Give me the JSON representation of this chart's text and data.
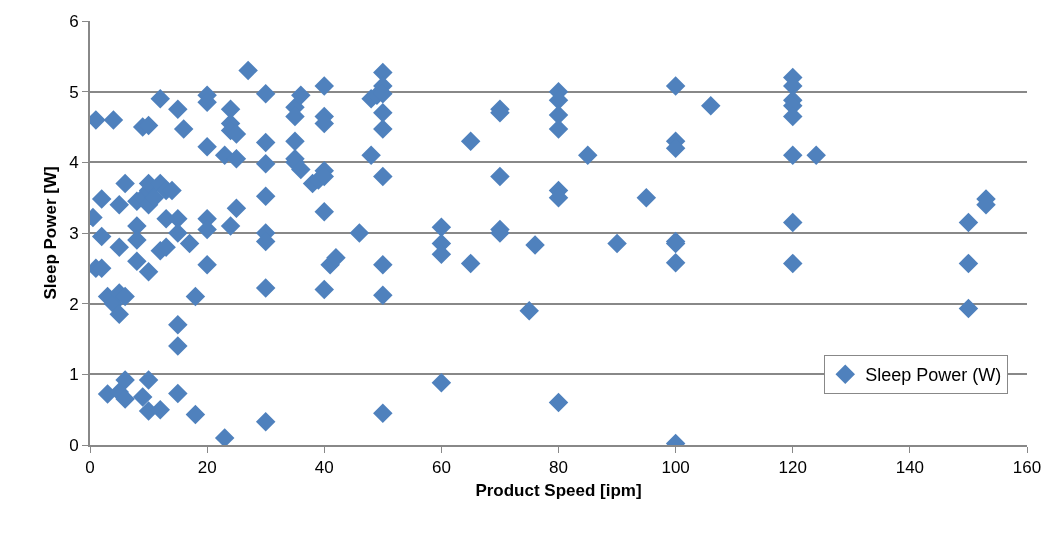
{
  "chart_data": {
    "type": "scatter",
    "xlabel": "Product Speed [ipm]",
    "ylabel": "Sleep Power [W]",
    "x": [
      0.5,
      1,
      1,
      2,
      2,
      2,
      3,
      3,
      4,
      4,
      5,
      5,
      5,
      5,
      5,
      6,
      6,
      6,
      6,
      8,
      8,
      8,
      8,
      9,
      9,
      9,
      10,
      10,
      10,
      10,
      10,
      10,
      10,
      11,
      12,
      12,
      12,
      12,
      13,
      13,
      13,
      14,
      15,
      15,
      15,
      15,
      15,
      15,
      16,
      17,
      18,
      18,
      20,
      20,
      20,
      20,
      20,
      20,
      23,
      23,
      24,
      24,
      24,
      24,
      25,
      25,
      25,
      27,
      30,
      30,
      30,
      30,
      30,
      30,
      30,
      30,
      35,
      35,
      35,
      35,
      35,
      36,
      36,
      38,
      39,
      40,
      40,
      40,
      40,
      40,
      40,
      40,
      41,
      42,
      46,
      48,
      48,
      49,
      50,
      50,
      50,
      50,
      50,
      50,
      50,
      50,
      50,
      60,
      60,
      60,
      60,
      65,
      65,
      70,
      70,
      70,
      70,
      70,
      75,
      76,
      80,
      80,
      80,
      80,
      80,
      80,
      80,
      85,
      90,
      95,
      100,
      100,
      100,
      100,
      100,
      100,
      100,
      106,
      120,
      120,
      120,
      120,
      120,
      120,
      120,
      120,
      124,
      150,
      150,
      150,
      153,
      153
    ],
    "series": [
      {
        "name": "Sleep Power (W)",
        "color": "#4f81bd",
        "values": [
          3.22,
          4.6,
          2.5,
          2.5,
          2.95,
          3.48,
          2.1,
          0.72,
          4.6,
          2.0,
          2.15,
          1.85,
          2.8,
          3.4,
          0.75,
          2.1,
          3.7,
          0.92,
          0.65,
          3.1,
          2.6,
          2.9,
          3.45,
          3.5,
          4.5,
          0.68,
          4.52,
          3.4,
          3.6,
          3.7,
          2.45,
          0.92,
          0.48,
          3.5,
          3.7,
          2.75,
          4.9,
          0.5,
          3.6,
          3.2,
          2.8,
          3.6,
          4.75,
          3.2,
          3.0,
          1.7,
          1.4,
          0.73,
          4.47,
          2.85,
          2.1,
          0.43,
          4.95,
          4.85,
          4.22,
          3.2,
          3.05,
          2.55,
          0.1,
          4.1,
          4.75,
          4.55,
          4.45,
          3.1,
          4.4,
          4.05,
          3.35,
          5.3,
          4.97,
          4.28,
          3.98,
          3.52,
          3.0,
          2.88,
          2.22,
          0.33,
          4.78,
          4.65,
          4.3,
          4.05,
          4.0,
          4.95,
          3.9,
          3.7,
          3.75,
          5.08,
          4.65,
          4.55,
          3.88,
          3.8,
          3.3,
          2.2,
          2.55,
          2.65,
          3.0,
          4.9,
          4.1,
          4.95,
          5.27,
          5.08,
          4.97,
          4.7,
          4.47,
          3.8,
          2.55,
          2.12,
          0.45,
          3.08,
          2.85,
          2.7,
          0.88,
          4.3,
          2.57,
          4.75,
          4.7,
          3.8,
          3.05,
          3.0,
          1.9,
          2.83,
          5.0,
          4.88,
          4.67,
          4.47,
          3.6,
          3.5,
          0.6,
          4.1,
          2.85,
          3.5,
          5.08,
          4.3,
          4.2,
          2.88,
          2.85,
          2.58,
          0.02,
          4.8,
          5.2,
          5.08,
          4.88,
          4.8,
          4.65,
          4.1,
          3.15,
          2.57,
          4.1,
          3.15,
          2.57,
          1.93,
          3.48,
          3.4
        ]
      }
    ],
    "xlim": [
      0,
      160
    ],
    "xticks": [
      0,
      20,
      40,
      60,
      80,
      100,
      120,
      140,
      160
    ],
    "ylim": [
      0,
      6
    ],
    "yticks": [
      0,
      1,
      2,
      3,
      4,
      5,
      6
    ],
    "grid": "y",
    "legend": "bottom right",
    "marker": "diamond"
  }
}
